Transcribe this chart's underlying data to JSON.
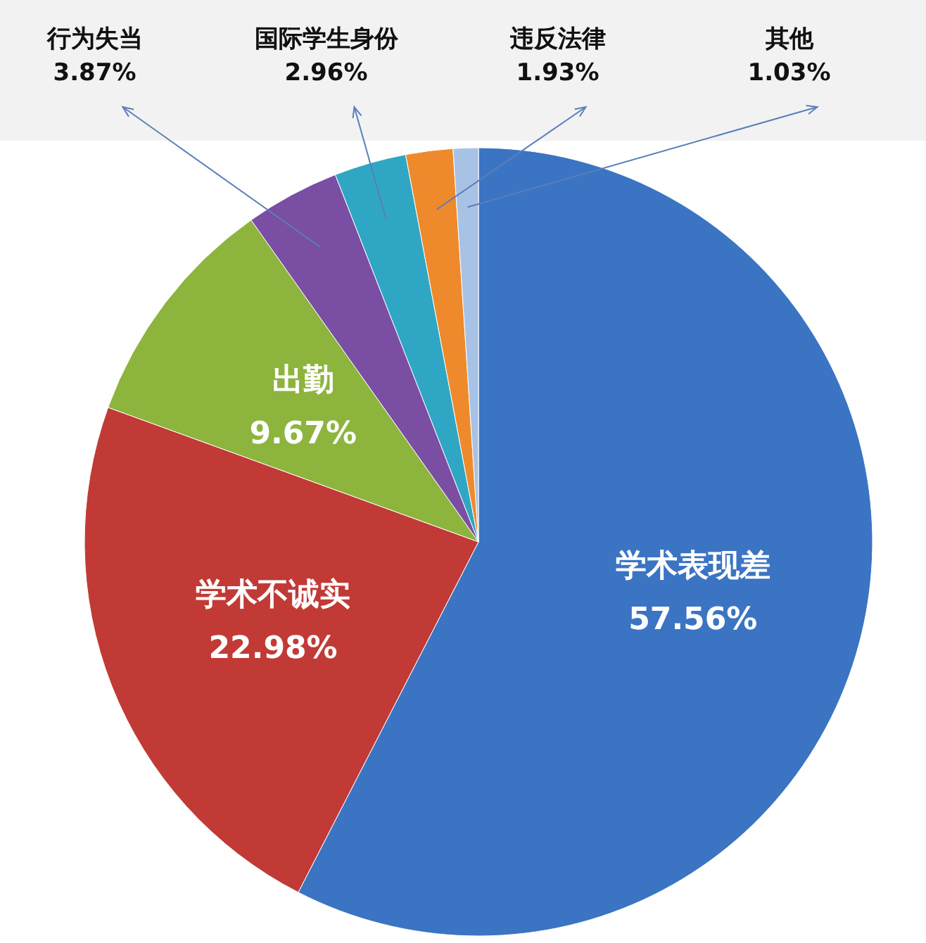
{
  "chart_data": {
    "type": "pie",
    "categories": [
      "学术表现差",
      "学术不诚实",
      "出勤",
      "行为失当",
      "国际学生身份",
      "违反法律",
      "其他"
    ],
    "values": [
      57.56,
      22.98,
      9.67,
      3.87,
      2.96,
      1.93,
      1.03
    ],
    "colors": [
      "#3b74c2",
      "#c23a36",
      "#8db43c",
      "#7a4fa3",
      "#2fa6c4",
      "#ef8a2c",
      "#a8c2e6"
    ],
    "value_labels": [
      "57.56%",
      "22.98%",
      "9.67%",
      "3.87%",
      "2.96%",
      "1.93%",
      "1.03%"
    ]
  }
}
